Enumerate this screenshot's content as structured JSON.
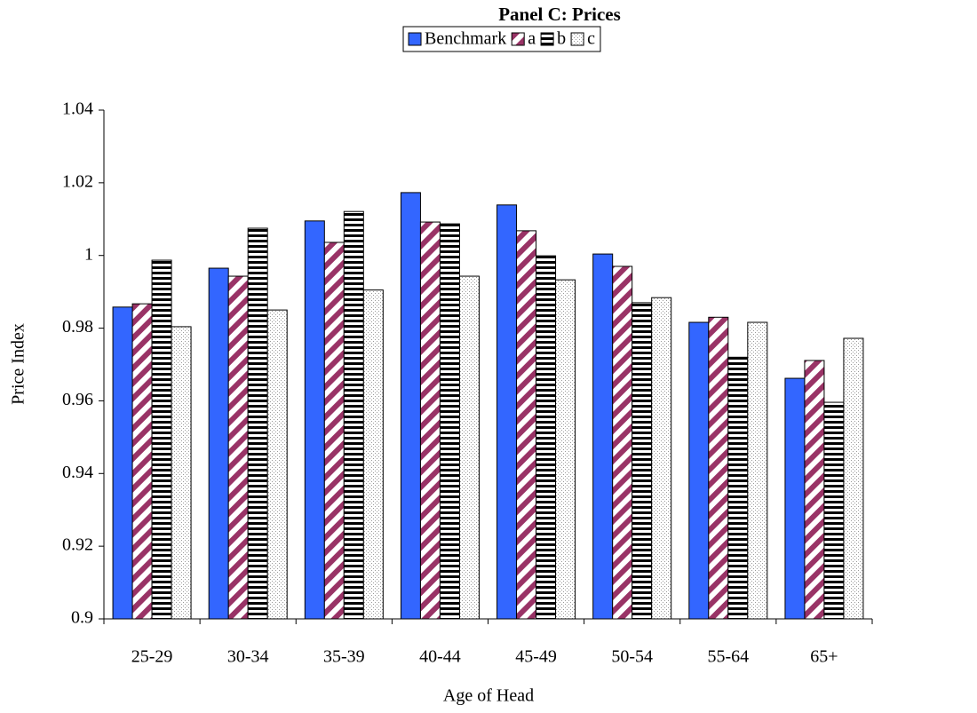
{
  "chart_data": {
    "type": "bar",
    "title": "Panel C: Prices",
    "x_label": "Age of Head",
    "y_label": "Price Index",
    "categories": [
      "25-29",
      "30-34",
      "35-39",
      "40-44",
      "45-49",
      "50-54",
      "55-64",
      "65+"
    ],
    "series": [
      {
        "name": "Benchmark",
        "color": "#3366ff",
        "pattern": "solid",
        "values": [
          0.9858,
          0.9965,
          1.0095,
          1.0173,
          1.0139,
          1.0004,
          0.9816,
          0.9662
        ]
      },
      {
        "name": "a",
        "color": "#993366",
        "pattern": "diagonal",
        "values": [
          0.9867,
          0.9943,
          1.0036,
          1.0092,
          1.0068,
          0.997,
          0.983,
          0.9711
        ]
      },
      {
        "name": "b",
        "color": "#000000",
        "pattern": "horizontal",
        "values": [
          0.9987,
          1.0075,
          1.0121,
          1.0087,
          0.9999,
          0.987,
          0.972,
          0.9596
        ]
      },
      {
        "name": "c",
        "color": "#999999",
        "pattern": "dots",
        "values": [
          0.9804,
          0.985,
          0.9905,
          0.9943,
          0.9933,
          0.9884,
          0.9816,
          0.9772
        ]
      }
    ],
    "ylim": [
      0.9,
      1.04
    ],
    "yticks": [
      0.9,
      0.92,
      0.94,
      0.96,
      0.98,
      1,
      1.02,
      1.04
    ],
    "grid": false,
    "legend": "top"
  }
}
